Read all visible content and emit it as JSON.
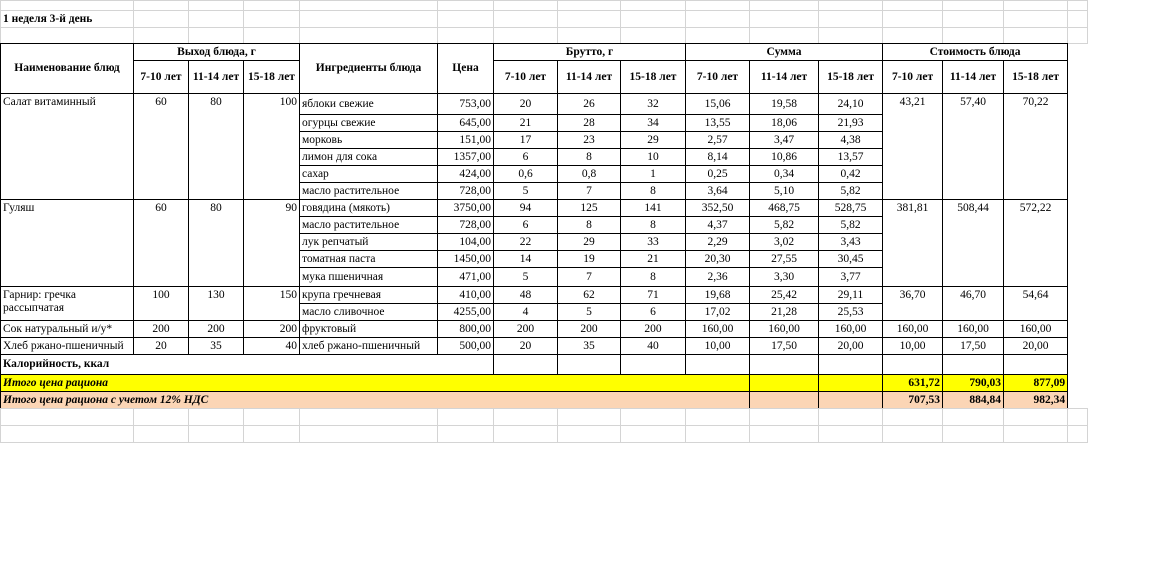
{
  "sheet": {
    "title": "1 неделя 3-й день",
    "headers": {
      "dish_name": "Наименование блюд",
      "yield_group": "Выход блюда, г",
      "ingredients": "Ингредиенты блюда",
      "price": "Цена",
      "brutto_group": "Брутто, г",
      "sum_group": "Сумма",
      "cost_group": "Стоимость блюда",
      "ages": [
        "7-10 лет",
        "11-14 лет",
        "15-18 лет"
      ]
    },
    "dishes": [
      {
        "name": "Салат витаминный",
        "yield": [
          "60",
          "80",
          "100"
        ],
        "cost": [
          "43,21",
          "57,40",
          "70,22"
        ],
        "ingredients": [
          {
            "name": "яблоки свежие",
            "price": "753,00",
            "brutto": [
              "20",
              "26",
              "32"
            ],
            "sum": [
              "15,06",
              "19,58",
              "24,10"
            ]
          },
          {
            "name": "огурцы свежие",
            "price": "645,00",
            "brutto": [
              "21",
              "28",
              "34"
            ],
            "sum": [
              "13,55",
              "18,06",
              "21,93"
            ]
          },
          {
            "name": "морковь",
            "price": "151,00",
            "brutto": [
              "17",
              "23",
              "29"
            ],
            "sum": [
              "2,57",
              "3,47",
              "4,38"
            ]
          },
          {
            "name": "лимон для сока",
            "price": "1357,00",
            "brutto": [
              "6",
              "8",
              "10"
            ],
            "sum": [
              "8,14",
              "10,86",
              "13,57"
            ]
          },
          {
            "name": "сахар",
            "price": "424,00",
            "brutto": [
              "0,6",
              "0,8",
              "1"
            ],
            "sum": [
              "0,25",
              "0,34",
              "0,42"
            ]
          },
          {
            "name": "масло растительное",
            "price": "728,00",
            "brutto": [
              "5",
              "7",
              "8"
            ],
            "sum": [
              "3,64",
              "5,10",
              "5,82"
            ]
          }
        ]
      },
      {
        "name": "Гуляш",
        "yield": [
          "60",
          "80",
          "90"
        ],
        "cost": [
          "381,81",
          "508,44",
          "572,22"
        ],
        "ingredients": [
          {
            "name": "говядина (мякоть)",
            "price": "3750,00",
            "brutto": [
              "94",
              "125",
              "141"
            ],
            "sum": [
              "352,50",
              "468,75",
              "528,75"
            ]
          },
          {
            "name": "масло растительное",
            "price": "728,00",
            "brutto": [
              "6",
              "8",
              "8"
            ],
            "sum": [
              "4,37",
              "5,82",
              "5,82"
            ]
          },
          {
            "name": "лук репчатый",
            "price": "104,00",
            "brutto": [
              "22",
              "29",
              "33"
            ],
            "sum": [
              "2,29",
              "3,02",
              "3,43"
            ]
          },
          {
            "name": "томатная паста",
            "price": "1450,00",
            "brutto": [
              "14",
              "19",
              "21"
            ],
            "sum": [
              "20,30",
              "27,55",
              "30,45"
            ]
          },
          {
            "name": "мука пшеничная",
            "price": "471,00",
            "brutto": [
              "5",
              "7",
              "8"
            ],
            "sum": [
              "2,36",
              "3,30",
              "3,77"
            ]
          }
        ]
      },
      {
        "name": "Гарнир: гречка рассыпчатая",
        "yield": [
          "100",
          "130",
          "150"
        ],
        "cost": [
          "36,70",
          "46,70",
          "54,64"
        ],
        "ingredients": [
          {
            "name": "крупа гречневая",
            "price": "410,00",
            "brutto": [
              "48",
              "62",
              "71"
            ],
            "sum": [
              "19,68",
              "25,42",
              "29,11"
            ]
          },
          {
            "name": "масло сливочное",
            "price": "4255,00",
            "brutto": [
              "4",
              "5",
              "6"
            ],
            "sum": [
              "17,02",
              "21,28",
              "25,53"
            ]
          }
        ]
      },
      {
        "name": "Сок натуральный и/у*",
        "yield": [
          "200",
          "200",
          "200"
        ],
        "cost": [
          "160,00",
          "160,00",
          "160,00"
        ],
        "ingredients": [
          {
            "name": "фруктовый",
            "price": "800,00",
            "brutto": [
              "200",
              "200",
              "200"
            ],
            "sum": [
              "160,00",
              "160,00",
              "160,00"
            ]
          }
        ]
      },
      {
        "name": "Хлеб ржано-пшеничный",
        "yield": [
          "20",
          "35",
          "40"
        ],
        "cost": [
          "10,00",
          "17,50",
          "20,00"
        ],
        "ingredients": [
          {
            "name": "хлеб ржано-пшеничный",
            "price": "500,00",
            "brutto": [
              "20",
              "35",
              "40"
            ],
            "sum": [
              "10,00",
              "17,50",
              "20,00"
            ]
          }
        ]
      }
    ],
    "calories_label": "Калорийность, ккал",
    "total": {
      "label": "Итого цена рациона",
      "values": [
        "631,72",
        "790,03",
        "877,09"
      ]
    },
    "total_vat": {
      "label": "Итого цена рациона с учетом 12% НДС",
      "values": [
        "707,53",
        "884,84",
        "982,34"
      ]
    },
    "colors": {
      "total_row": "#ffff00",
      "total_vat_row": "#fbd5b5",
      "grid": "#d4d4d4"
    }
  }
}
